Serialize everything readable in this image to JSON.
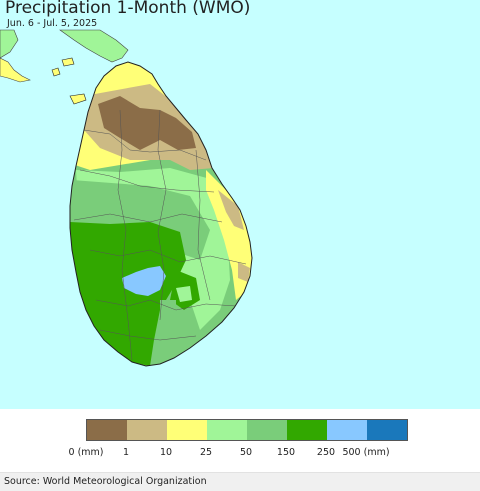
{
  "title": "Precipitation 1-Month (WMO)",
  "subtitle": "Jun. 6 - Jul. 5, 2025",
  "legend": {
    "colors": [
      "#8b6d48",
      "#ccba84",
      "#ffff77",
      "#a0f598",
      "#7acd7a",
      "#32a800",
      "#88c8ff",
      "#1a78bb"
    ],
    "labels": [
      "0 (mm)",
      "1",
      "10",
      "25",
      "50",
      "150",
      "250",
      "500 (mm)"
    ]
  },
  "source": "Source: World Meteorological Organization",
  "colors": {
    "ocean": "#c6ffff",
    "border": "#555555"
  }
}
